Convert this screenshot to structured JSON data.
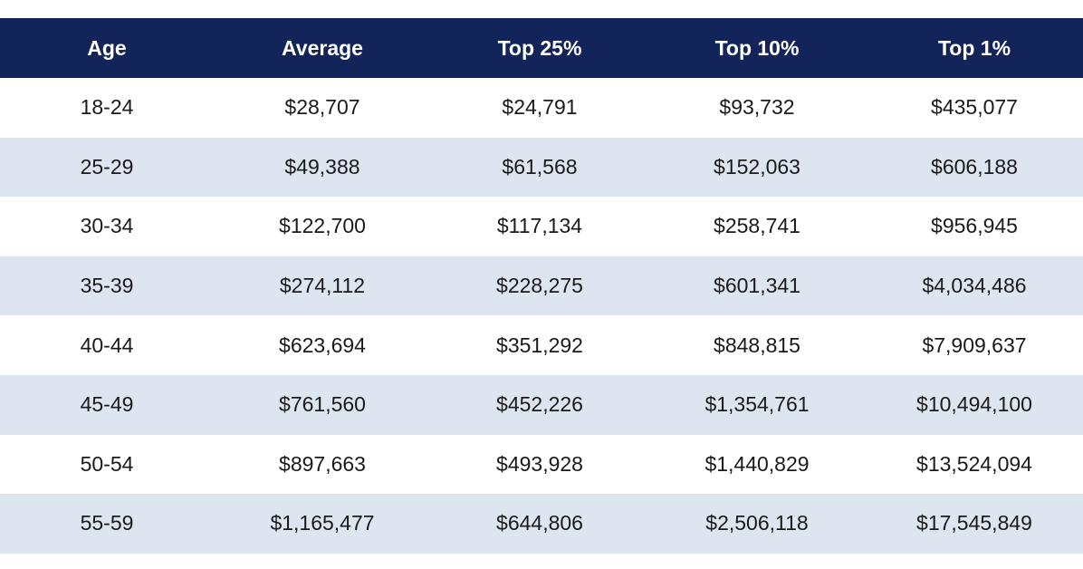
{
  "table": {
    "headers": [
      "Age",
      "Average",
      "Top 25%",
      "Top 10%",
      "Top 1%"
    ],
    "rows": [
      [
        "18-24",
        "$28,707",
        "$24,791",
        "$93,732",
        "$435,077"
      ],
      [
        "25-29",
        "$49,388",
        "$61,568",
        "$152,063",
        "$606,188"
      ],
      [
        "30-34",
        "$122,700",
        "$117,134",
        "$258,741",
        "$956,945"
      ],
      [
        "35-39",
        "$274,112",
        "$228,275",
        "$601,341",
        "$4,034,486"
      ],
      [
        "40-44",
        "$623,694",
        "$351,292",
        "$848,815",
        "$7,909,637"
      ],
      [
        "45-49",
        "$761,560",
        "$452,226",
        "$1,354,761",
        "$10,494,100"
      ],
      [
        "50-54",
        "$897,663",
        "$493,928",
        "$1,440,829",
        "$13,524,094"
      ],
      [
        "55-59",
        "$1,165,477",
        "$644,806",
        "$2,506,118",
        "$17,545,849"
      ]
    ]
  },
  "colors": {
    "header_bg": "#12245a",
    "header_text": "#ffffff",
    "row_alt_bg": "#dde5f1",
    "row_bg": "#ffffff"
  }
}
